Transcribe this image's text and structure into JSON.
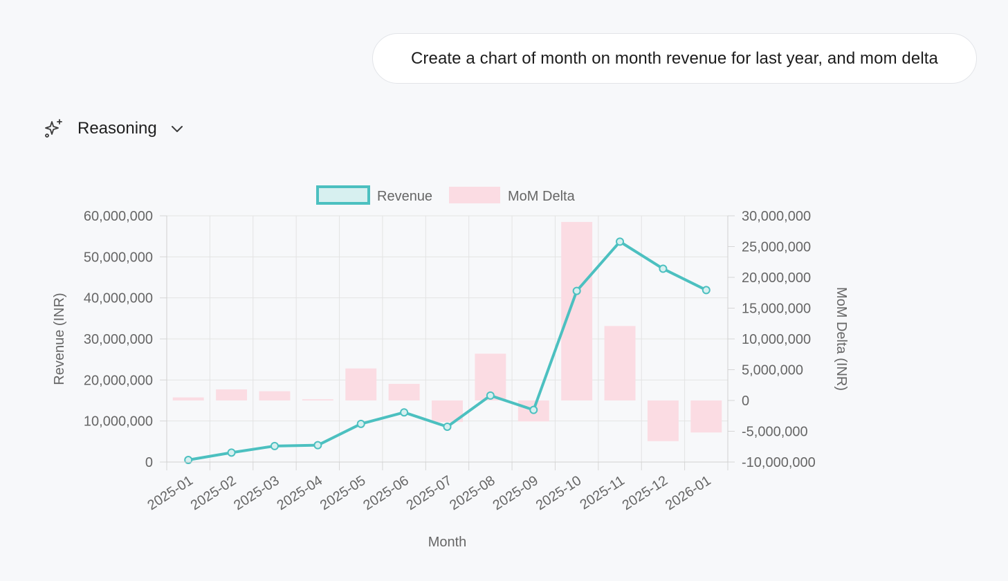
{
  "user_message": {
    "text": "Create a chart of month on month revenue for last year, and mom delta"
  },
  "reasoning": {
    "label": "Reasoning",
    "icon": "sparkle-icon",
    "toggle_icon": "chevron-down-icon"
  },
  "chart_data": {
    "type": "bar",
    "categories": [
      "2025-01",
      "2025-02",
      "2025-03",
      "2025-04",
      "2025-05",
      "2025-06",
      "2025-07",
      "2025-08",
      "2025-09",
      "2025-10",
      "2025-11",
      "2025-12",
      "2026-01"
    ],
    "series": [
      {
        "name": "Revenue",
        "type": "line",
        "axis": "left",
        "color": "#4cc0c0",
        "values": [
          500000,
          2300000,
          3900000,
          4100000,
          9300000,
          12100000,
          8600000,
          16200000,
          12700000,
          41700000,
          53700000,
          47100000,
          41900000
        ]
      },
      {
        "name": "MoM Delta",
        "type": "bar",
        "axis": "right",
        "color": "#fbdce3",
        "values": [
          500000,
          1800000,
          1500000,
          200000,
          5200000,
          2700000,
          -3500000,
          7600000,
          -3400000,
          29000000,
          12100000,
          -6600000,
          -5200000
        ]
      }
    ],
    "y_left": {
      "label": "Revenue (INR)",
      "min": 0,
      "max": 60000000,
      "ticks": [
        "0",
        "10,000,000",
        "20,000,000",
        "30,000,000",
        "40,000,000",
        "50,000,000",
        "60,000,000"
      ]
    },
    "y_right": {
      "label": "MoM Delta (INR)",
      "min": -10000000,
      "max": 30000000,
      "ticks": [
        "-10,000,000",
        "-5,000,000",
        "0",
        "5,000,000",
        "10,000,000",
        "15,000,000",
        "20,000,000",
        "25,000,000",
        "30,000,000"
      ]
    },
    "xlabel": "Month",
    "grid": true,
    "legend_position": "top"
  }
}
